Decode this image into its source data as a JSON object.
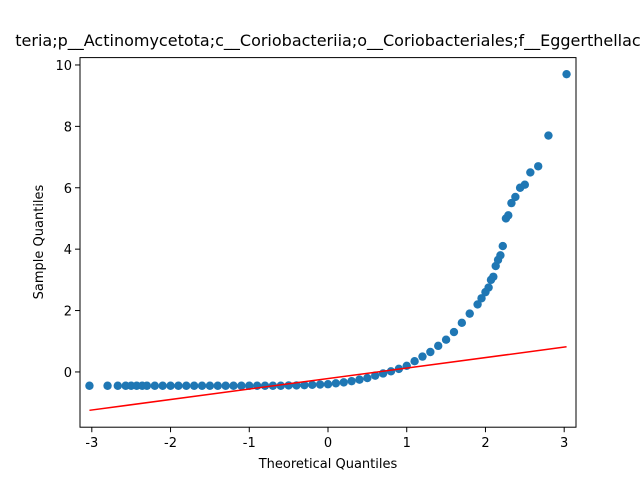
{
  "chart_data": {
    "type": "scatter",
    "title": "teria;p__Actinomycetota;c__Coriobacteriia;o__Coriobacteriales;f__Eggerthellac",
    "x_label": "Theoretical Quantiles",
    "y_label": "Sample Quantiles",
    "color": "#1f77b4",
    "x": [
      -3.03,
      -2.8,
      -2.67,
      -2.57,
      -2.5,
      -2.43,
      -2.36,
      -2.3,
      -2.2,
      -2.1,
      -2.0,
      -1.9,
      -1.8,
      -1.7,
      -1.6,
      -1.5,
      -1.4,
      -1.3,
      -1.2,
      -1.1,
      -1.0,
      -0.9,
      -0.8,
      -0.7,
      -0.6,
      -0.5,
      -0.4,
      -0.3,
      -0.2,
      -0.1,
      0.0,
      0.1,
      0.2,
      0.3,
      0.4,
      0.5,
      0.6,
      0.7,
      0.8,
      0.9,
      1.0,
      1.1,
      1.2,
      1.3,
      1.4,
      1.5,
      1.6,
      1.7,
      1.8,
      1.9,
      1.95,
      2.0,
      2.04,
      2.07,
      2.1,
      2.13,
      2.16,
      2.19,
      2.22,
      2.26,
      2.29,
      2.33,
      2.38,
      2.44,
      2.5,
      2.57,
      2.67,
      2.8,
      3.03
    ],
    "values": [
      -0.45,
      -0.45,
      -0.45,
      -0.45,
      -0.45,
      -0.45,
      -0.45,
      -0.45,
      -0.45,
      -0.45,
      -0.45,
      -0.45,
      -0.45,
      -0.45,
      -0.45,
      -0.45,
      -0.45,
      -0.45,
      -0.45,
      -0.45,
      -0.45,
      -0.45,
      -0.45,
      -0.45,
      -0.45,
      -0.44,
      -0.44,
      -0.43,
      -0.42,
      -0.41,
      -0.4,
      -0.37,
      -0.34,
      -0.3,
      -0.25,
      -0.2,
      -0.12,
      -0.05,
      0.02,
      0.1,
      0.2,
      0.35,
      0.5,
      0.65,
      0.85,
      1.05,
      1.3,
      1.6,
      1.9,
      2.2,
      2.4,
      2.6,
      2.75,
      3.0,
      3.1,
      3.45,
      3.65,
      3.8,
      4.1,
      5.0,
      5.1,
      5.5,
      5.7,
      6.0,
      6.1,
      6.5,
      6.7,
      7.7,
      9.7
    ],
    "line": {
      "color": "#ff0000",
      "x": [
        -3.03,
        3.03
      ],
      "values": [
        -1.25,
        0.82
      ]
    },
    "xlim": [
      -3.15,
      3.15
    ],
    "ylim": [
      -1.8,
      10.24
    ],
    "xticks": [
      -3,
      -2,
      -1,
      0,
      1,
      2,
      3
    ],
    "yticks": [
      0,
      2,
      4,
      6,
      8,
      10
    ]
  }
}
